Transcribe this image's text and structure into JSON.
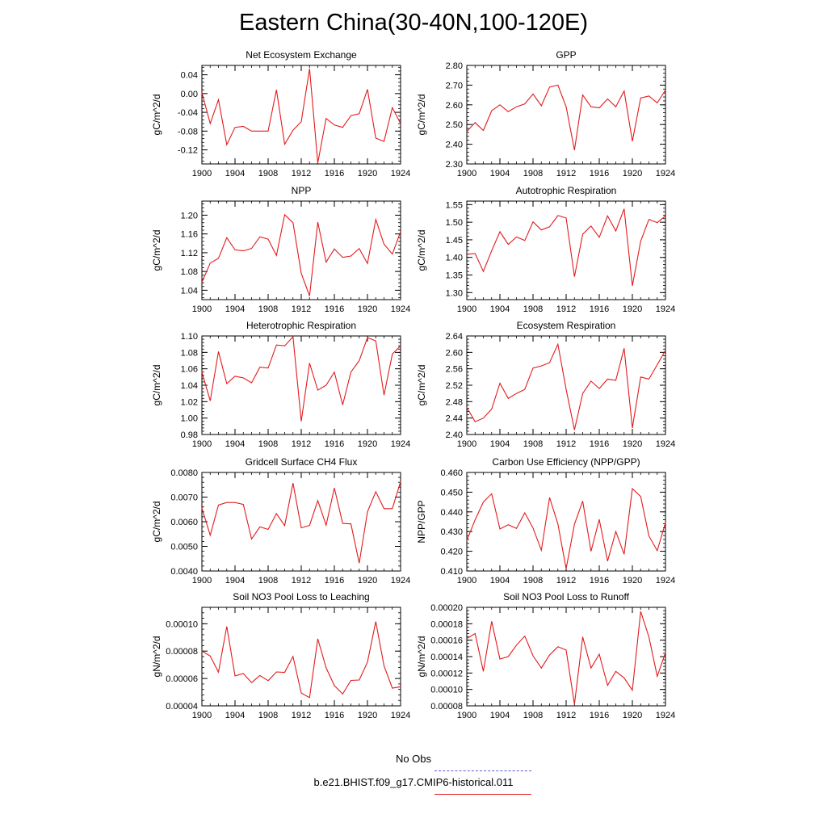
{
  "title": "Eastern China(30-40N,100-120E)",
  "legend": {
    "obs_label": "No Obs",
    "obs_color": "#5b5bd6",
    "case_label": "b.e21.BHIST.f09_g17.CMIP6-historical.011",
    "case_color": "#e31a1c"
  },
  "chart_data": [
    {
      "type": "line",
      "title": "Net Ecosystem Exchange",
      "ylabel": "gC/m^2/d",
      "xlim": [
        1900,
        1924
      ],
      "ylim": [
        -0.15,
        0.06
      ],
      "xticks": [
        "1900",
        "1904",
        "1908",
        "1912",
        "1916",
        "1920",
        "1924"
      ],
      "yticks": [
        0.04,
        0.0,
        -0.04,
        -0.08,
        -0.12
      ],
      "yticklabels": [
        "0.04",
        "0.00",
        "-0.04",
        "-0.08",
        "-0.12"
      ],
      "series": [
        {
          "color": "#e31a1c",
          "x": [
            1900,
            1901,
            1902,
            1903,
            1904,
            1905,
            1906,
            1907,
            1908,
            1909,
            1910,
            1911,
            1912,
            1913,
            1914,
            1915,
            1916,
            1917,
            1918,
            1919,
            1920,
            1921,
            1922,
            1923,
            1924
          ],
          "y": [
            0.002,
            -0.064,
            -0.013,
            -0.109,
            -0.072,
            -0.07,
            -0.08,
            -0.08,
            -0.08,
            0.008,
            -0.108,
            -0.078,
            -0.06,
            0.053,
            -0.148,
            -0.053,
            -0.067,
            -0.072,
            -0.047,
            -0.043,
            0.009,
            -0.095,
            -0.102,
            -0.03,
            -0.064
          ]
        }
      ]
    },
    {
      "type": "line",
      "title": "GPP",
      "ylabel": "gC/m^2/d",
      "xlim": [
        1900,
        1924
      ],
      "ylim": [
        2.3,
        2.8
      ],
      "xticks": [
        "1900",
        "1904",
        "1908",
        "1912",
        "1916",
        "1920",
        "1924"
      ],
      "yticks": [
        2.8,
        2.7,
        2.6,
        2.5,
        2.4,
        2.3
      ],
      "yticklabels": [
        "2.80",
        "2.70",
        "2.60",
        "2.50",
        "2.40",
        "2.30"
      ],
      "series": [
        {
          "color": "#e31a1c",
          "x": [
            1900,
            1901,
            1902,
            1903,
            1904,
            1905,
            1906,
            1907,
            1908,
            1909,
            1910,
            1911,
            1912,
            1913,
            1914,
            1915,
            1916,
            1917,
            1918,
            1919,
            1920,
            1921,
            1922,
            1923,
            1924
          ],
          "y": [
            2.465,
            2.51,
            2.47,
            2.57,
            2.6,
            2.565,
            2.59,
            2.605,
            2.655,
            2.595,
            2.69,
            2.7,
            2.59,
            2.37,
            2.65,
            2.59,
            2.585,
            2.63,
            2.59,
            2.67,
            2.415,
            2.635,
            2.645,
            2.61,
            2.675
          ]
        }
      ]
    },
    {
      "type": "line",
      "title": "NPP",
      "ylabel": "gC/m^2/d",
      "xlim": [
        1900,
        1924
      ],
      "ylim": [
        1.02,
        1.23
      ],
      "xticks": [
        "1900",
        "1904",
        "1908",
        "1912",
        "1916",
        "1920",
        "1924"
      ],
      "yticks": [
        1.2,
        1.16,
        1.12,
        1.08,
        1.04
      ],
      "yticklabels": [
        "1.20",
        "1.16",
        "1.12",
        "1.08",
        "1.04"
      ],
      "series": [
        {
          "color": "#e31a1c",
          "x": [
            1900,
            1901,
            1902,
            1903,
            1904,
            1905,
            1906,
            1907,
            1908,
            1909,
            1910,
            1911,
            1912,
            1913,
            1914,
            1915,
            1916,
            1917,
            1918,
            1919,
            1920,
            1921,
            1922,
            1923,
            1924
          ],
          "y": [
            1.057,
            1.098,
            1.108,
            1.152,
            1.126,
            1.124,
            1.129,
            1.154,
            1.149,
            1.114,
            1.201,
            1.184,
            1.076,
            1.028,
            1.185,
            1.1,
            1.128,
            1.11,
            1.113,
            1.129,
            1.097,
            1.191,
            1.138,
            1.117,
            1.165
          ]
        }
      ]
    },
    {
      "type": "line",
      "title": "Autotrophic Respiration",
      "ylabel": "gC/m^2/d",
      "xlim": [
        1900,
        1924
      ],
      "ylim": [
        1.28,
        1.56
      ],
      "xticks": [
        "1900",
        "1904",
        "1908",
        "1912",
        "1916",
        "1920",
        "1924"
      ],
      "yticks": [
        1.55,
        1.5,
        1.45,
        1.4,
        1.35,
        1.3
      ],
      "yticklabels": [
        "1.55",
        "1.50",
        "1.45",
        "1.40",
        "1.35",
        "1.30"
      ],
      "series": [
        {
          "color": "#e31a1c",
          "x": [
            1900,
            1901,
            1902,
            1903,
            1904,
            1905,
            1906,
            1907,
            1908,
            1909,
            1910,
            1911,
            1912,
            1913,
            1914,
            1915,
            1916,
            1917,
            1918,
            1919,
            1920,
            1921,
            1922,
            1923,
            1924
          ],
          "y": [
            1.409,
            1.411,
            1.36,
            1.419,
            1.473,
            1.437,
            1.458,
            1.448,
            1.501,
            1.478,
            1.487,
            1.519,
            1.512,
            1.345,
            1.466,
            1.489,
            1.457,
            1.518,
            1.475,
            1.538,
            1.319,
            1.446,
            1.508,
            1.499,
            1.518
          ]
        }
      ]
    },
    {
      "type": "line",
      "title": "Heterotrophic Respiration",
      "ylabel": "gC/m^2/d",
      "xlim": [
        1900,
        1924
      ],
      "ylim": [
        0.98,
        1.1
      ],
      "xticks": [
        "1900",
        "1904",
        "1908",
        "1912",
        "1916",
        "1920",
        "1924"
      ],
      "yticks": [
        1.1,
        1.08,
        1.06,
        1.04,
        1.02,
        1.0,
        0.98
      ],
      "yticklabels": [
        "1.10",
        "1.08",
        "1.06",
        "1.04",
        "1.02",
        "1.00",
        "0.98"
      ],
      "series": [
        {
          "color": "#e31a1c",
          "x": [
            1900,
            1901,
            1902,
            1903,
            1904,
            1905,
            1906,
            1907,
            1908,
            1909,
            1910,
            1911,
            1912,
            1913,
            1914,
            1915,
            1916,
            1917,
            1918,
            1919,
            1920,
            1921,
            1922,
            1923,
            1924
          ],
          "y": [
            1.056,
            1.021,
            1.081,
            1.042,
            1.051,
            1.049,
            1.043,
            1.062,
            1.061,
            1.089,
            1.088,
            1.099,
            0.996,
            1.067,
            1.034,
            1.04,
            1.056,
            1.016,
            1.056,
            1.07,
            1.098,
            1.094,
            1.028,
            1.078,
            1.088
          ]
        }
      ]
    },
    {
      "type": "line",
      "title": "Ecosystem Respiration",
      "ylabel": "gC/m^2/d",
      "xlim": [
        1900,
        1924
      ],
      "ylim": [
        2.4,
        2.64
      ],
      "xticks": [
        "1900",
        "1904",
        "1908",
        "1912",
        "1916",
        "1920",
        "1924"
      ],
      "yticks": [
        2.64,
        2.6,
        2.56,
        2.52,
        2.48,
        2.44,
        2.4
      ],
      "yticklabels": [
        "2.64",
        "2.60",
        "2.56",
        "2.52",
        "2.48",
        "2.44",
        "2.40"
      ],
      "series": [
        {
          "color": "#e31a1c",
          "x": [
            1900,
            1901,
            1902,
            1903,
            1904,
            1905,
            1906,
            1907,
            1908,
            1909,
            1910,
            1911,
            1912,
            1913,
            1914,
            1915,
            1916,
            1917,
            1918,
            1919,
            1920,
            1921,
            1922,
            1923,
            1924
          ],
          "y": [
            2.466,
            2.431,
            2.44,
            2.462,
            2.525,
            2.488,
            2.5,
            2.51,
            2.562,
            2.567,
            2.575,
            2.62,
            2.51,
            2.411,
            2.5,
            2.53,
            2.512,
            2.535,
            2.532,
            2.61,
            2.416,
            2.54,
            2.535,
            2.57,
            2.605
          ]
        }
      ]
    },
    {
      "type": "line",
      "title": "Gridcell Surface CH4 Flux",
      "ylabel": "gC/m^2/d",
      "xlim": [
        1900,
        1924
      ],
      "ylim": [
        0.004,
        0.008
      ],
      "xticks": [
        "1900",
        "1904",
        "1908",
        "1912",
        "1916",
        "1920",
        "1924"
      ],
      "yticks": [
        0.008,
        0.007,
        0.006,
        0.005,
        0.004
      ],
      "yticklabels": [
        "0.0080",
        "0.0070",
        "0.0060",
        "0.0050",
        "0.0040"
      ],
      "series": [
        {
          "color": "#e31a1c",
          "x": [
            1900,
            1901,
            1902,
            1903,
            1904,
            1905,
            1906,
            1907,
            1908,
            1909,
            1910,
            1911,
            1912,
            1913,
            1914,
            1915,
            1916,
            1917,
            1918,
            1919,
            1920,
            1921,
            1922,
            1923,
            1924
          ],
          "y": [
            0.00655,
            0.00545,
            0.00668,
            0.00678,
            0.00678,
            0.0067,
            0.0053,
            0.00579,
            0.00569,
            0.00633,
            0.00584,
            0.00757,
            0.00575,
            0.00585,
            0.00686,
            0.00586,
            0.00737,
            0.00593,
            0.00591,
            0.00432,
            0.0064,
            0.00722,
            0.00653,
            0.00653,
            0.00763
          ]
        }
      ]
    },
    {
      "type": "line",
      "title": "Carbon Use Efficiency (NPP/GPP)",
      "ylabel": "NPP/GPP",
      "xlim": [
        1900,
        1924
      ],
      "ylim": [
        0.41,
        0.46
      ],
      "xticks": [
        "1900",
        "1904",
        "1908",
        "1912",
        "1916",
        "1920",
        "1924"
      ],
      "yticks": [
        0.46,
        0.45,
        0.44,
        0.43,
        0.42,
        0.41
      ],
      "yticklabels": [
        "0.460",
        "0.450",
        "0.440",
        "0.430",
        "0.420",
        "0.410"
      ],
      "series": [
        {
          "color": "#e31a1c",
          "x": [
            1900,
            1901,
            1902,
            1903,
            1904,
            1905,
            1906,
            1907,
            1908,
            1909,
            1910,
            1911,
            1912,
            1913,
            1914,
            1915,
            1916,
            1917,
            1918,
            1919,
            1920,
            1921,
            1922,
            1923,
            1924
          ],
          "y": [
            0.4255,
            0.436,
            0.445,
            0.4492,
            0.4313,
            0.4335,
            0.4316,
            0.4395,
            0.4318,
            0.4205,
            0.4473,
            0.4338,
            0.4112,
            0.4337,
            0.4455,
            0.42,
            0.4362,
            0.415,
            0.43,
            0.4185,
            0.4518,
            0.4478,
            0.4278,
            0.4203,
            0.4345
          ]
        }
      ]
    },
    {
      "type": "line",
      "title": "Soil NO3 Pool Loss to Leaching",
      "ylabel": "gN/m^2/d",
      "xlim": [
        1900,
        1924
      ],
      "ylim": [
        4e-05,
        0.000112
      ],
      "xticks": [
        "1900",
        "1904",
        "1908",
        "1912",
        "1916",
        "1920",
        "1924"
      ],
      "yticks": [
        0.0001,
        8e-05,
        6e-05,
        4e-05
      ],
      "yticklabels": [
        "0.00010",
        "0.00008",
        "0.00006",
        "0.00004"
      ],
      "series": [
        {
          "color": "#e31a1c",
          "x": [
            1900,
            1901,
            1902,
            1903,
            1904,
            1905,
            1906,
            1907,
            1908,
            1909,
            1910,
            1911,
            1912,
            1913,
            1914,
            1915,
            1916,
            1917,
            1918,
            1919,
            1920,
            1921,
            1922,
            1923,
            1924
          ],
          "y": [
            8e-05,
            7.64e-05,
            6.46e-05,
            9.8e-05,
            6.19e-05,
            6.36e-05,
            5.7e-05,
            6.22e-05,
            5.84e-05,
            6.48e-05,
            6.45e-05,
            7.61e-05,
            4.94e-05,
            4.6e-05,
            8.9e-05,
            6.78e-05,
            5.48e-05,
            4.87e-05,
            5.86e-05,
            5.89e-05,
            7.2e-05,
            0.0001016,
            6.92e-05,
            5.29e-05,
            5.4e-05
          ]
        }
      ]
    },
    {
      "type": "line",
      "title": "Soil NO3 Pool Loss to Runoff",
      "ylabel": "gN/m^2/d",
      "xlim": [
        1900,
        1924
      ],
      "ylim": [
        8e-05,
        0.0002
      ],
      "xticks": [
        "1900",
        "1904",
        "1908",
        "1912",
        "1916",
        "1920",
        "1924"
      ],
      "yticks": [
        0.0002,
        0.00018,
        0.00016,
        0.00014,
        0.00012,
        0.0001,
        8e-05
      ],
      "yticklabels": [
        "0.00020",
        "0.00018",
        "0.00016",
        "0.00014",
        "0.00012",
        "0.00010",
        "0.00008"
      ],
      "series": [
        {
          "color": "#e31a1c",
          "x": [
            1900,
            1901,
            1902,
            1903,
            1904,
            1905,
            1906,
            1907,
            1908,
            1909,
            1910,
            1911,
            1912,
            1913,
            1914,
            1915,
            1916,
            1917,
            1918,
            1919,
            1920,
            1921,
            1922,
            1923,
            1924
          ],
          "y": [
            0.000162,
            0.000168,
            0.000122,
            0.000183,
            0.000137,
            0.00014,
            0.000154,
            0.000165,
            0.000141,
            0.000126,
            0.000142,
            0.000152,
            0.000148,
            8.2e-05,
            0.000164,
            0.000126,
            0.000143,
            0.000105,
            0.000122,
            0.000114,
            9.9e-05,
            0.000195,
            0.000164,
            0.000116,
            0.000145
          ]
        }
      ]
    }
  ]
}
